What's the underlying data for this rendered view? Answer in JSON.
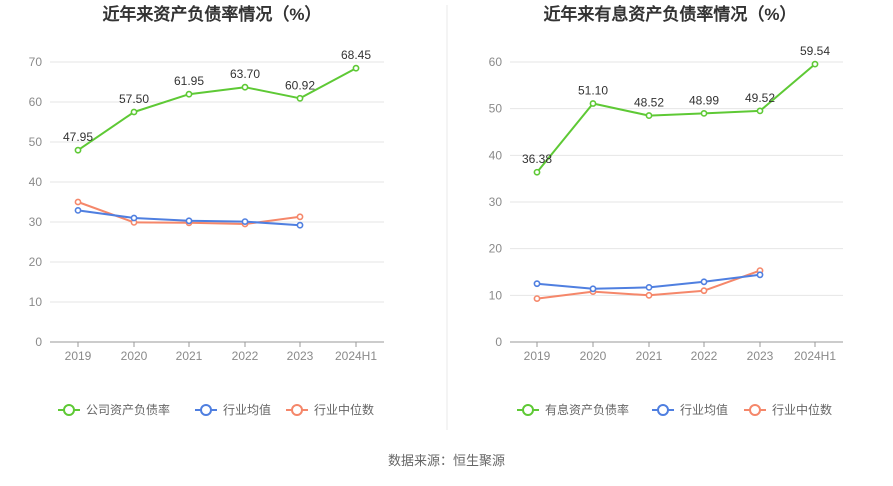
{
  "source": "数据来源：恒生聚源",
  "colors": {
    "green": "#5ec935",
    "blue": "#4f7fe0",
    "orange": "#f5876a",
    "grid": "#e6e6e6",
    "axis": "#999999",
    "divider": "#e8e8e8"
  },
  "chart_data": [
    {
      "type": "line",
      "title": "近年来资产负债率情况（%）",
      "categories": [
        "2019",
        "2020",
        "2021",
        "2022",
        "2023",
        "2024H1"
      ],
      "ylim": [
        0,
        70
      ],
      "yticks": [
        0,
        10,
        20,
        30,
        40,
        50,
        60,
        70
      ],
      "grid": true,
      "legend_position": "bottom",
      "series": [
        {
          "name": "公司资产负债率",
          "color": "#5ec935",
          "labels": true,
          "values": [
            47.95,
            57.5,
            61.95,
            63.7,
            60.92,
            68.45
          ],
          "value_labels": [
            "47.95",
            "57.50",
            "61.95",
            "63.70",
            "60.92",
            "68.45"
          ]
        },
        {
          "name": "行业均值",
          "color": "#4f7fe0",
          "labels": false,
          "values": [
            32.9,
            31.0,
            30.3,
            30.1,
            29.2,
            null
          ]
        },
        {
          "name": "行业中位数",
          "color": "#f5876a",
          "labels": false,
          "values": [
            35.0,
            29.9,
            29.8,
            29.5,
            31.3,
            null
          ]
        }
      ]
    },
    {
      "type": "line",
      "title": "近年来有息资产负债率情况（%）",
      "categories": [
        "2019",
        "2020",
        "2021",
        "2022",
        "2023",
        "2024H1"
      ],
      "ylim": [
        0,
        60
      ],
      "yticks": [
        0,
        10,
        20,
        30,
        40,
        50,
        60
      ],
      "grid": true,
      "legend_position": "bottom",
      "series": [
        {
          "name": "有息资产负债率",
          "color": "#5ec935",
          "labels": true,
          "values": [
            36.38,
            51.1,
            48.52,
            48.99,
            49.52,
            59.54
          ],
          "value_labels": [
            "36.38",
            "51.10",
            "48.52",
            "48.99",
            "49.52",
            "59.54"
          ]
        },
        {
          "name": "行业均值",
          "color": "#4f7fe0",
          "labels": false,
          "values": [
            12.5,
            11.4,
            11.7,
            12.9,
            14.4,
            null
          ]
        },
        {
          "name": "行业中位数",
          "color": "#f5876a",
          "labels": false,
          "values": [
            9.3,
            10.8,
            10.0,
            11.0,
            15.3,
            null
          ]
        }
      ]
    }
  ]
}
